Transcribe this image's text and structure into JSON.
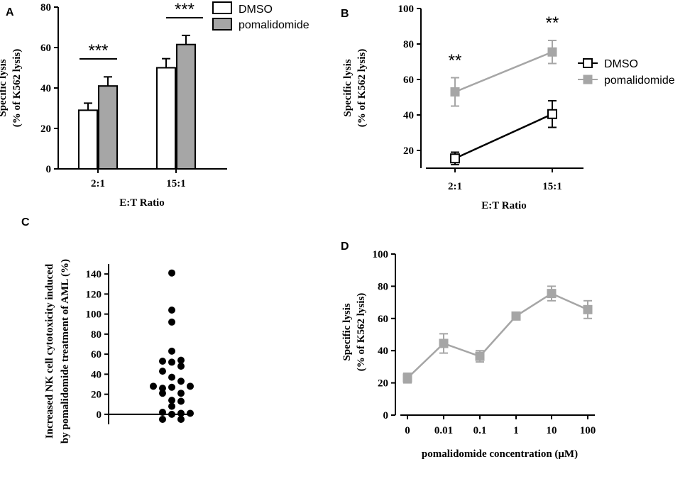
{
  "colors": {
    "dmso": "#000000",
    "pomalidomide": "#a6a6a6",
    "bar_pom_fill": "#a6a6a6",
    "bar_dmso_fill": "#ffffff"
  },
  "chart_data": [
    {
      "panel": "A",
      "type": "bar",
      "categories": [
        "2:1",
        "15:1"
      ],
      "series": [
        {
          "name": "DMSO",
          "values": [
            29,
            50
          ],
          "errors": [
            3.5,
            4.5
          ]
        },
        {
          "name": "pomalidomide",
          "values": [
            41,
            61.5
          ],
          "errors": [
            4.5,
            4.5
          ]
        }
      ],
      "significance": [
        "***",
        "***"
      ],
      "xlabel": "E:T Ratio",
      "ylabel_line1": "Specific lysis",
      "ylabel_line2": "(% of K562 lysis)",
      "ylim": [
        0,
        80
      ],
      "yticks": [
        "0",
        "20",
        "40",
        "60",
        "80"
      ],
      "legend": [
        "DMSO",
        "pomalidomide"
      ]
    },
    {
      "panel": "B",
      "type": "line",
      "categories": [
        "2:1",
        "15:1"
      ],
      "series": [
        {
          "name": "DMSO",
          "values": [
            15.5,
            40.5
          ],
          "errors": [
            3.5,
            7.5
          ]
        },
        {
          "name": "pomalidomide",
          "values": [
            53,
            75.5
          ],
          "errors": [
            8,
            6.5
          ]
        }
      ],
      "significance": [
        "**",
        "**"
      ],
      "xlabel": "E:T Ratio",
      "ylabel_line1": "Specific lysis",
      "ylabel_line2": "(% of K562 lysis)",
      "ylim": [
        10,
        100
      ],
      "yticks": [
        "20",
        "40",
        "60",
        "80",
        "100"
      ],
      "legend": [
        "DMSO",
        "pomalidomide"
      ]
    },
    {
      "panel": "C",
      "type": "scatter",
      "ylabel_line1": "Increased NK cell cytotoxicity induced",
      "ylabel_line2": "by pomalidomide treatment of AML (%)",
      "ylim": [
        -10,
        150
      ],
      "yticks": [
        "0",
        "20",
        "40",
        "60",
        "80",
        "100",
        "120",
        "140"
      ],
      "points": [
        141,
        104,
        92,
        63,
        54,
        53,
        52,
        48,
        43,
        37,
        33,
        28,
        28,
        27,
        26,
        21,
        21,
        14,
        13,
        8,
        2,
        1,
        1,
        0,
        -5,
        -5
      ]
    },
    {
      "panel": "D",
      "type": "line",
      "categories": [
        "0",
        "0.01",
        "0.1",
        "1",
        "10",
        "100"
      ],
      "series": [
        {
          "name": "pomalidomide",
          "values": [
            23,
            44.5,
            36.5,
            61.5,
            75.5,
            65.5
          ],
          "errors": [
            3,
            6,
            3.5,
            1.5,
            4.5,
            5.5
          ]
        }
      ],
      "xlabel": "pomalidomide concentration (μM)",
      "ylabel_line1": "Specific lysis",
      "ylabel_line2": "(% of K562 lysis)",
      "ylim": [
        0,
        100
      ],
      "yticks": [
        "0",
        "20",
        "40",
        "60",
        "80",
        "100"
      ]
    }
  ]
}
